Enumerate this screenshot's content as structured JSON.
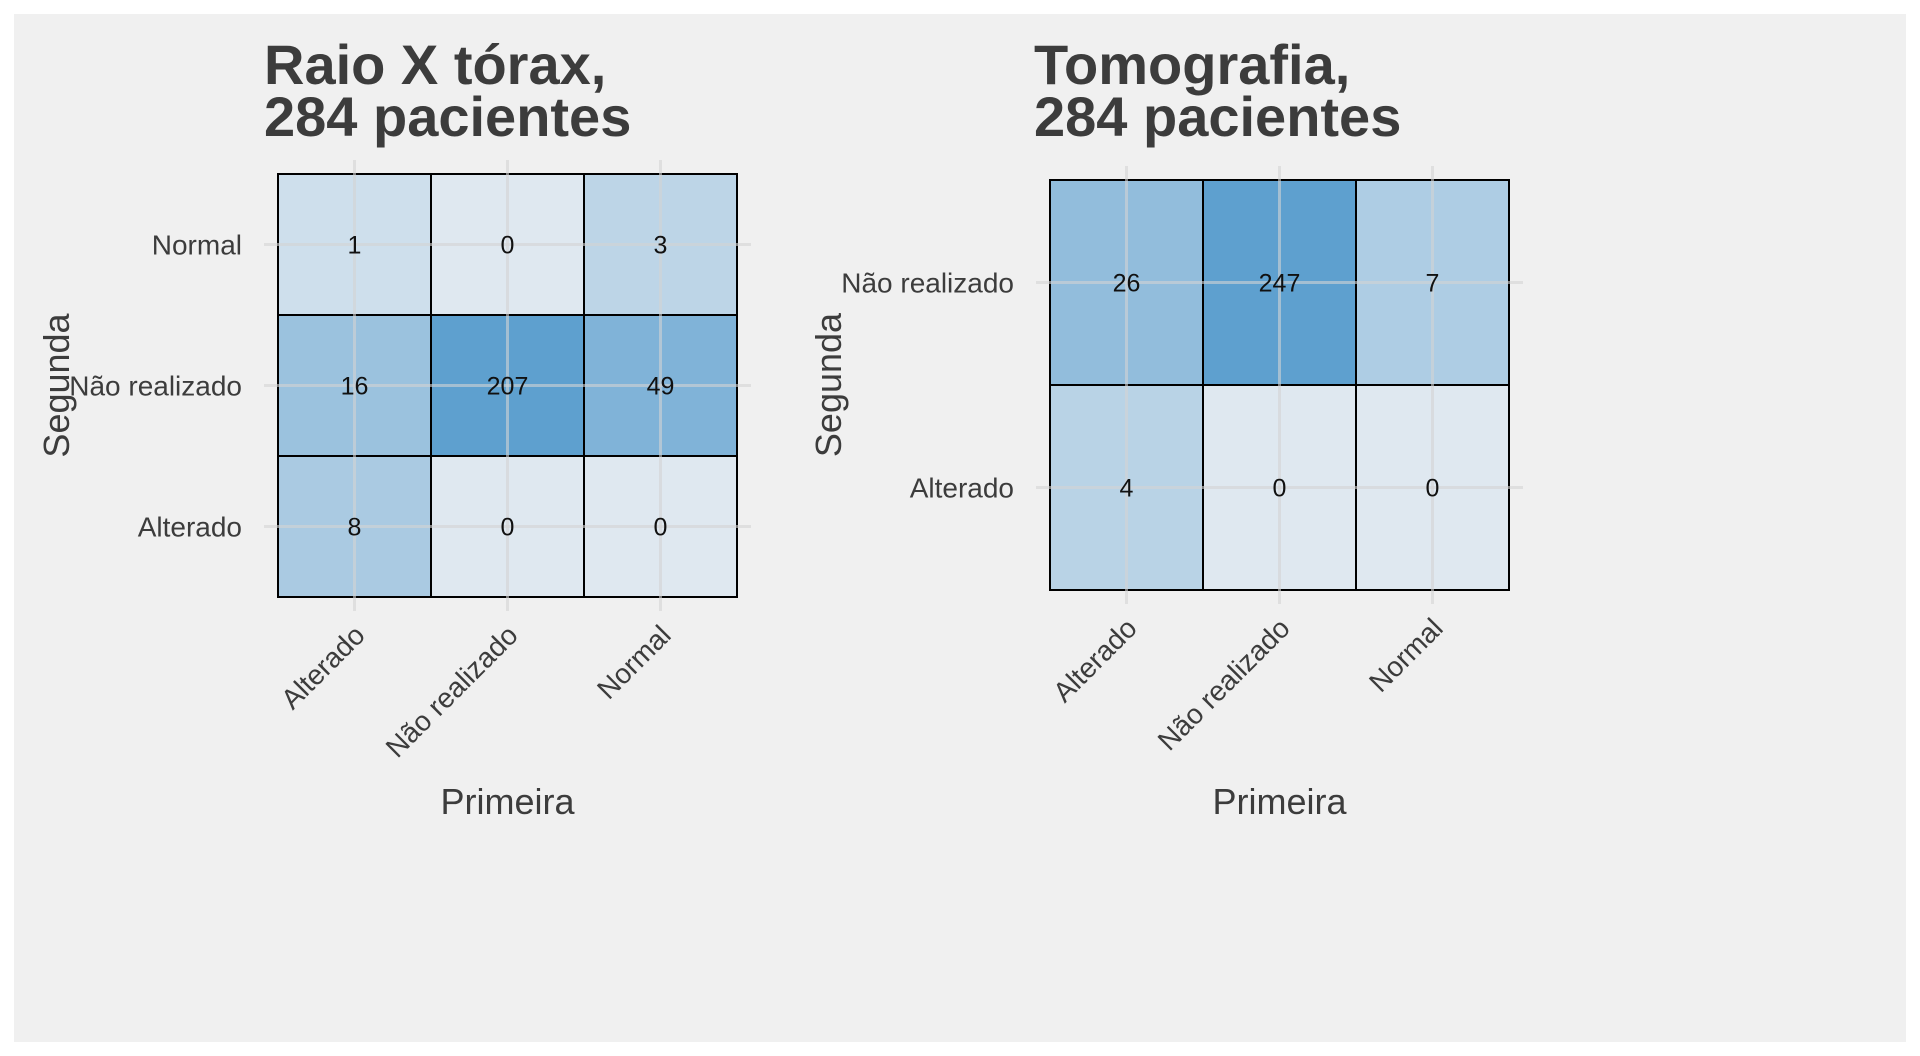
{
  "chart_data": [
    {
      "type": "heatmap",
      "title_lines": [
        "Raio X tórax,",
        "284 pacientes"
      ],
      "xlabel": "Primeira",
      "ylabel": "Segunda",
      "x_categories": [
        "Alterado",
        "Não realizado",
        "Normal"
      ],
      "y_categories": [
        "Normal",
        "Não realizado",
        "Alterado"
      ],
      "values": [
        [
          1,
          0,
          3
        ],
        [
          16,
          207,
          49
        ],
        [
          8,
          0,
          0
        ]
      ]
    },
    {
      "type": "heatmap",
      "title_lines": [
        "Tomografia,",
        "284 pacientes"
      ],
      "xlabel": "Primeira",
      "ylabel": "Segunda",
      "x_categories": [
        "Alterado",
        "Não realizado",
        "Normal"
      ],
      "y_categories": [
        "Não realizado",
        "Alterado"
      ],
      "values": [
        [
          26,
          247,
          7
        ],
        [
          4,
          0,
          0
        ]
      ]
    }
  ],
  "colors": {
    "panel_background": "#f0f0f0",
    "low": "#dfe8f0",
    "high": "#5ea0cf",
    "cell_border": "#000000",
    "text": "#3c3c3c",
    "grid": "#d4d4d4"
  }
}
